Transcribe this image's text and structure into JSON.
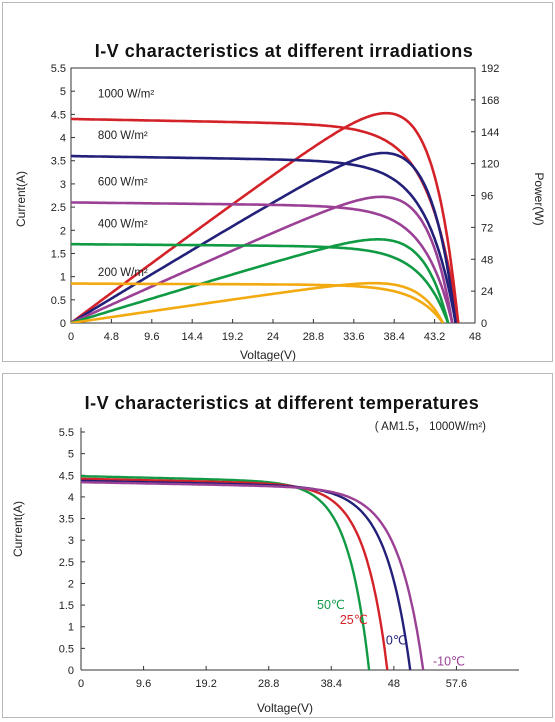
{
  "chart_data": [
    {
      "type": "line",
      "title": "I-V characteristics at different irradiations",
      "xlabel": "Voltage(V)",
      "ylabel": "Current(A)",
      "y2label": "Power(W)",
      "xlim": [
        0,
        48
      ],
      "ylim": [
        0,
        5.5
      ],
      "y2lim": [
        0,
        192
      ],
      "xticks": [
        "0",
        "4.8",
        "9.6",
        "14.4",
        "19.2",
        "24",
        "28.8",
        "33.6",
        "38.4",
        "43.2",
        "48"
      ],
      "yticks": [
        "0",
        "0.5",
        "1",
        "1.5",
        "2",
        "2.5",
        "3",
        "3.5",
        "4",
        "4.5",
        "5",
        "5.5"
      ],
      "y2ticks": [
        "0",
        "24",
        "48",
        "72",
        "96",
        "120",
        "144",
        "168",
        "192"
      ],
      "grid": false,
      "series": [
        {
          "name": "1000 W/m²",
          "color": "#d42229",
          "isc": 4.4,
          "voc": 46.0,
          "pmax_voltage": 38.0,
          "pmax_power": 158
        },
        {
          "name": "800 W/m²",
          "color": "#23207a",
          "isc": 3.6,
          "voc": 45.7,
          "pmax_voltage": 38.0,
          "pmax_power": 128
        },
        {
          "name": "600 W/m²",
          "color": "#9a4095",
          "isc": 2.6,
          "voc": 45.3,
          "pmax_voltage": 37.8,
          "pmax_power": 95
        },
        {
          "name": "400 W/m²",
          "color": "#119a44",
          "isc": 1.7,
          "voc": 44.8,
          "pmax_voltage": 37.8,
          "pmax_power": 63
        },
        {
          "name": "200 W/m²",
          "color": "#f2aa10",
          "isc": 0.85,
          "voc": 44.2,
          "pmax_voltage": 37.8,
          "pmax_power": 30
        }
      ]
    },
    {
      "type": "line",
      "title": "I-V characteristics at different temperatures",
      "subtitle": "( AM1.5， 1000W/m²)",
      "xlabel": "Voltage(V)",
      "ylabel": "Current(A)",
      "xlim": [
        0,
        67.2
      ],
      "ylim": [
        0,
        5.5
      ],
      "xticks": [
        "0",
        "9.6",
        "19.2",
        "28.8",
        "38.4",
        "48",
        "57.6"
      ],
      "yticks": [
        "0",
        "0.5",
        "1",
        "1.5",
        "2",
        "2.5",
        "3",
        "3.5",
        "4",
        "4.5",
        "5",
        "5.5"
      ],
      "grid": false,
      "series": [
        {
          "name": "50℃",
          "color": "#119a44",
          "isc": 4.48,
          "voc": 44.2
        },
        {
          "name": "25℃",
          "color": "#d42229",
          "isc": 4.42,
          "voc": 47.0
        },
        {
          "name": "0℃",
          "color": "#23207a",
          "isc": 4.37,
          "voc": 50.5
        },
        {
          "name": "-10℃",
          "color": "#9a4095",
          "isc": 4.34,
          "voc": 52.5
        }
      ]
    }
  ]
}
